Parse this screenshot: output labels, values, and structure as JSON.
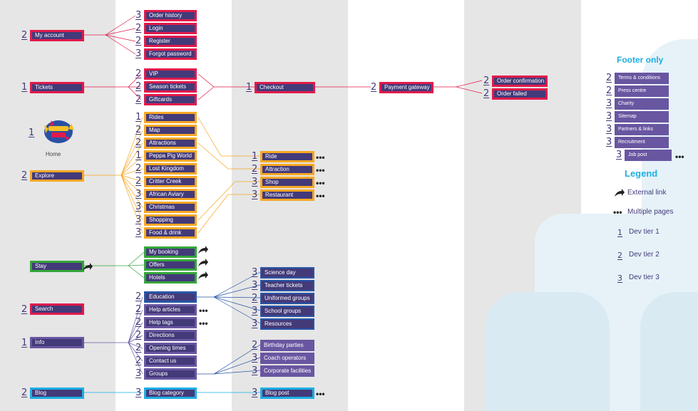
{
  "columns": [],
  "home": {
    "label": "Home",
    "tier": "1"
  },
  "colA": [
    {
      "label": "My account",
      "tier": "2"
    },
    {
      "label": "Tickets",
      "tier": "1"
    },
    {
      "label": "Explore",
      "tier": "2"
    },
    {
      "label": "Stay",
      "tier": ""
    },
    {
      "label": "Search",
      "tier": "2"
    },
    {
      "label": "Info",
      "tier": "1"
    },
    {
      "label": "Blog",
      "tier": "2"
    }
  ],
  "colB": [
    {
      "label": "Order history",
      "tier": "3"
    },
    {
      "label": "Login",
      "tier": "2"
    },
    {
      "label": "Register",
      "tier": "2"
    },
    {
      "label": "Forgot password",
      "tier": "3"
    },
    {
      "label": "VIP",
      "tier": "2"
    },
    {
      "label": "Season tickets",
      "tier": "2"
    },
    {
      "label": "Giftcards",
      "tier": "2"
    },
    {
      "label": "Rides",
      "tier": "1"
    },
    {
      "label": "Map",
      "tier": "2"
    },
    {
      "label": "Attractions",
      "tier": "2"
    },
    {
      "label": "Peppa Pig World",
      "tier": "1"
    },
    {
      "label": "Lost Kingdom",
      "tier": "2"
    },
    {
      "label": "Critter Creek",
      "tier": "2"
    },
    {
      "label": "African Aviary",
      "tier": "3"
    },
    {
      "label": "Christmas",
      "tier": "3"
    },
    {
      "label": "Shopping",
      "tier": "3"
    },
    {
      "label": "Food & drink",
      "tier": "3"
    },
    {
      "label": "My booking",
      "tier": ""
    },
    {
      "label": "Offers",
      "tier": ""
    },
    {
      "label": "Hotels",
      "tier": ""
    },
    {
      "label": "Education",
      "tier": "2"
    },
    {
      "label": "Help articles",
      "tier": "2"
    },
    {
      "label": "Help tags",
      "tier": "2"
    },
    {
      "label": "Directions",
      "tier": "2"
    },
    {
      "label": "Opening times",
      "tier": "2"
    },
    {
      "label": "Contact us",
      "tier": "2"
    },
    {
      "label": "Groups",
      "tier": "3"
    },
    {
      "label": "Blog category",
      "tier": "3"
    }
  ],
  "colC": [
    {
      "label": "Checkout",
      "tier": "1"
    },
    {
      "label": "Ride",
      "tier": "1"
    },
    {
      "label": "Attraction",
      "tier": "2"
    },
    {
      "label": "Shop",
      "tier": "3"
    },
    {
      "label": "Restaurant",
      "tier": "3"
    },
    {
      "label": "Science day",
      "tier": "3"
    },
    {
      "label": "Teacher tickets",
      "tier": "3"
    },
    {
      "label": "Uniformed groups",
      "tier": "2"
    },
    {
      "label": "School groups",
      "tier": "3"
    },
    {
      "label": "Resources",
      "tier": "3"
    },
    {
      "label": "Birthday parties",
      "tier": "2"
    },
    {
      "label": "Coach operators",
      "tier": "3"
    },
    {
      "label": "Corporate facilities",
      "tier": "3"
    },
    {
      "label": "Blog post",
      "tier": "3"
    }
  ],
  "colD": [
    {
      "label": "Payment gateway",
      "tier": "2"
    }
  ],
  "colE": [
    {
      "label": "Order confirmation",
      "tier": "2"
    },
    {
      "label": "Order failed",
      "tier": "2"
    }
  ],
  "footer": {
    "title": "Footer only",
    "items": [
      {
        "label": "Terms & conditions",
        "tier": "2"
      },
      {
        "label": "Press centre",
        "tier": "2"
      },
      {
        "label": "Charity",
        "tier": "3"
      },
      {
        "label": "Sitemap",
        "tier": "3"
      },
      {
        "label": "Partners & links",
        "tier": "3"
      },
      {
        "label": "Recruitment",
        "tier": "3"
      },
      {
        "label": "Job post",
        "tier": "3"
      }
    ]
  },
  "legend": {
    "title": "Legend",
    "external": "External link",
    "multiple": "Multiple pages",
    "tier1": "Dev tier 1",
    "tier2": "Dev tier 2",
    "tier3": "Dev tier 3",
    "t1": "1",
    "t2": "2",
    "t3": "3"
  },
  "dots": "•••",
  "colors": {
    "red": "#e21a4b",
    "orange": "#f7a823",
    "green": "#34a639",
    "blue": "#1eaee4",
    "navy": "#2856a6",
    "purple": "#6956a1",
    "box": "#433a79"
  }
}
